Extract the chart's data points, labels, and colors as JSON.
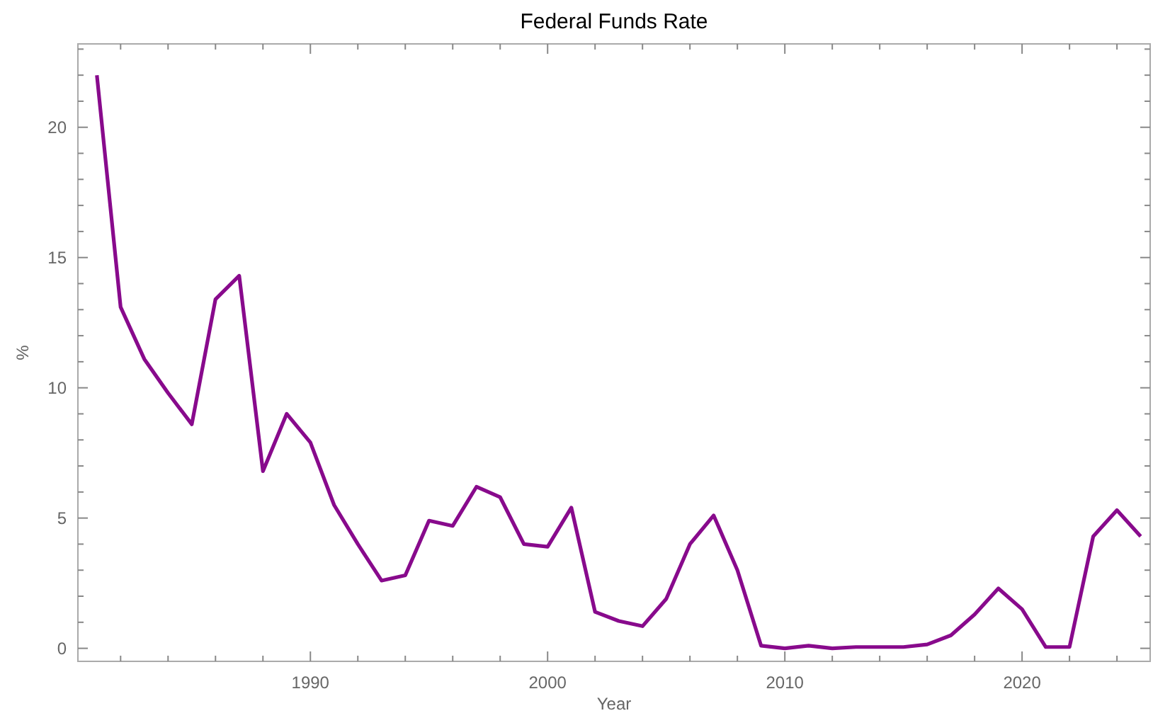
{
  "chart_data": {
    "type": "line",
    "title": "Federal Funds Rate",
    "xlabel": "Year",
    "ylabel": "%",
    "x": [
      1981,
      1982,
      1983,
      1984,
      1985,
      1986,
      1987,
      1988,
      1989,
      1990,
      1991,
      1992,
      1993,
      1994,
      1995,
      1996,
      1997,
      1998,
      1999,
      2000,
      2001,
      2002,
      2003,
      2004,
      2005,
      2006,
      2007,
      2008,
      2009,
      2010,
      2011,
      2012,
      2013,
      2014,
      2015,
      2016,
      2017,
      2018,
      2019,
      2020,
      2021,
      2022,
      2023,
      2024,
      2025
    ],
    "series": [
      {
        "color": "#880a8c",
        "values": [
          22,
          13.1,
          11.1,
          9.8,
          8.6,
          13.4,
          14.3,
          6.8,
          9.0,
          7.9,
          5.5,
          4.0,
          2.6,
          2.8,
          4.9,
          4.7,
          6.2,
          5.8,
          4.0,
          3.9,
          5.4,
          1.4,
          1.05,
          0.85,
          1.9,
          4.0,
          5.1,
          3.0,
          0.1,
          0.0,
          0.1,
          0.0,
          0.05,
          0.05,
          0.05,
          0.15,
          0.5,
          1.3,
          2.3,
          1.5,
          0.05,
          0.05,
          4.3,
          5.3,
          4.3
        ]
      }
    ],
    "xlim": [
      1980.2,
      2025.4
    ],
    "ylim": [
      -0.5,
      23.2
    ],
    "xticks": [
      {
        "value": 1982,
        "label": null
      },
      {
        "value": 1984,
        "label": null
      },
      {
        "value": 1986,
        "label": null
      },
      {
        "value": 1988,
        "label": null
      },
      1990,
      {
        "value": 1992,
        "label": null
      },
      {
        "value": 1994,
        "label": null
      },
      {
        "value": 1996,
        "label": null
      },
      {
        "value": 1998,
        "label": null
      },
      2000,
      {
        "value": 2002,
        "label": null
      },
      {
        "value": 2004,
        "label": null
      },
      {
        "value": 2006,
        "label": null
      },
      {
        "value": 2008,
        "label": null
      },
      2010,
      {
        "value": 2012,
        "label": null
      },
      {
        "value": 2014,
        "label": null
      },
      {
        "value": 2016,
        "label": null
      },
      {
        "value": 2018,
        "label": null
      },
      2020,
      {
        "value": 2022,
        "label": null
      },
      {
        "value": 2024,
        "label": null
      }
    ],
    "yticks": [
      0,
      {
        "value": 1,
        "label": null
      },
      {
        "value": 2,
        "label": null
      },
      {
        "value": 3,
        "label": null
      },
      {
        "value": 4,
        "label": null
      },
      5,
      {
        "value": 6,
        "label": null
      },
      {
        "value": 7,
        "label": null
      },
      {
        "value": 8,
        "label": null
      },
      {
        "value": 9,
        "label": null
      },
      10,
      {
        "value": 11,
        "label": null
      },
      {
        "value": 12,
        "label": null
      },
      {
        "value": 13,
        "label": null
      },
      {
        "value": 14,
        "label": null
      },
      15,
      {
        "value": 16,
        "label": null
      },
      {
        "value": 17,
        "label": null
      },
      {
        "value": 18,
        "label": null
      },
      {
        "value": 19,
        "label": null
      },
      20,
      {
        "value": 21,
        "label": null
      },
      {
        "value": 22,
        "label": null
      },
      {
        "value": 23,
        "label": null
      }
    ],
    "grid": false,
    "marker": "none",
    "line_style": "solid"
  }
}
